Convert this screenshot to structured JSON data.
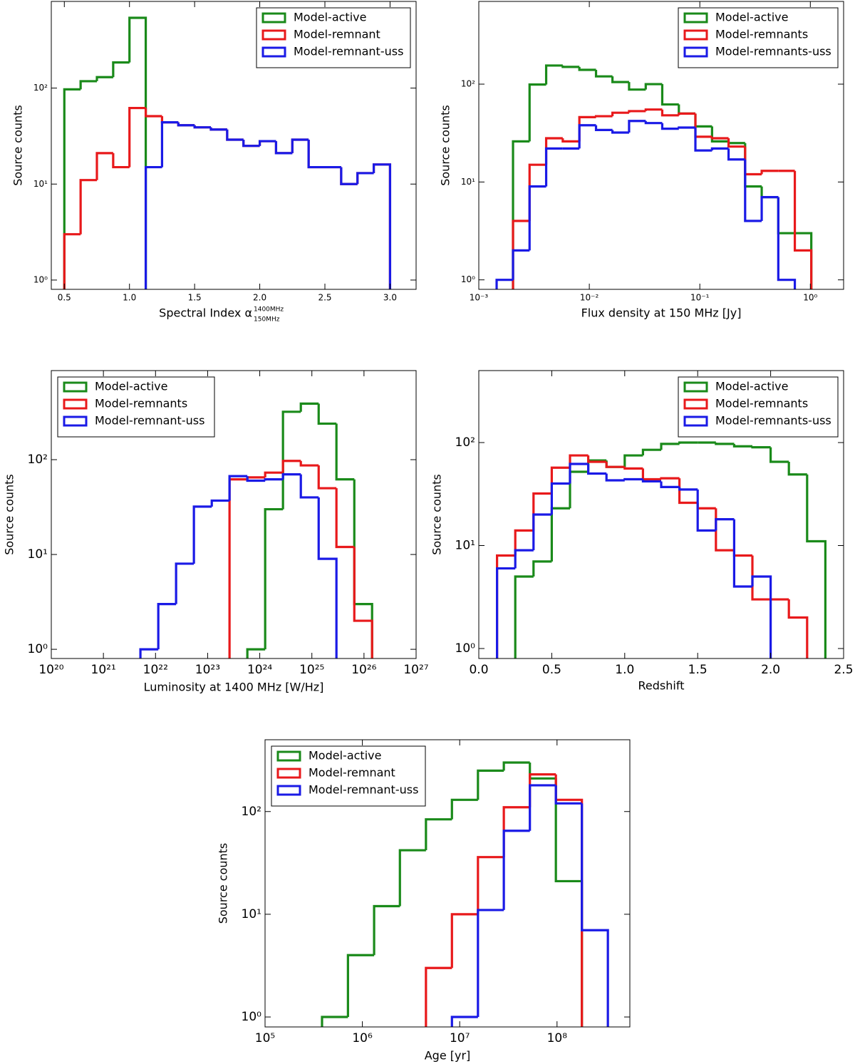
{
  "chart_data": [
    {
      "type": "histogram",
      "xlabel": "Spectral Index α",
      "xlabel_sup": "1400MHz",
      "xlabel_sub": "150MHz",
      "ylabel": "Source counts",
      "xscale": "linear",
      "yscale": "log",
      "xlim": [
        0.4,
        3.2
      ],
      "ylim": [
        0.8,
        800
      ],
      "xticks": [
        0.5,
        {
          "value": 1,
          "label": "1.0"
        },
        1.5,
        {
          "value": 2,
          "label": "2.0"
        },
        2.5,
        {
          "value": 3,
          "label": "3.0"
        }
      ],
      "yticks": [
        {
          "value": 1,
          "label": "10⁰"
        },
        {
          "value": 10,
          "label": "10¹"
        },
        {
          "value": 100,
          "label": "10²"
        }
      ],
      "legend": "upper right",
      "bins": [
        0.5,
        0.625,
        0.75,
        0.875,
        1.0,
        1.125,
        1.25,
        1.375,
        1.5,
        1.625,
        1.75,
        1.875,
        2.0,
        2.125,
        2.25,
        2.375,
        2.5,
        2.625,
        2.75,
        2.875,
        3.0
      ],
      "series": [
        {
          "name": "Model-active",
          "color": "#1a8a1a",
          "values": [
            97,
            118,
            130,
            185,
            540,
            null,
            null,
            null,
            null,
            null,
            null,
            null,
            null,
            null,
            null,
            null,
            null,
            null,
            null,
            null
          ]
        },
        {
          "name": "Model-remnant",
          "color": "#e8191b",
          "values": [
            3,
            11,
            21,
            15,
            62,
            51,
            44,
            41,
            39,
            37,
            29,
            25,
            28,
            21,
            29,
            15,
            15,
            10,
            13,
            16
          ]
        },
        {
          "name": "Model-remnant-uss",
          "color": "#1a1ae6",
          "values": [
            null,
            null,
            null,
            null,
            null,
            15,
            44,
            41,
            39,
            37,
            29,
            25,
            28,
            21,
            29,
            15,
            15,
            10,
            13,
            16
          ]
        }
      ]
    },
    {
      "type": "histogram",
      "xlabel": "Flux density at 150 MHz [Jy]",
      "ylabel": "Source counts",
      "xscale": "log",
      "yscale": "log",
      "xlim": [
        0.001,
        2
      ],
      "ylim": [
        0.8,
        700
      ],
      "xticks": [
        {
          "value": 0.001,
          "label": "10⁻³"
        },
        {
          "value": 0.01,
          "label": "10⁻²"
        },
        {
          "value": 0.1,
          "label": "10⁻¹"
        },
        {
          "value": 1,
          "label": "10⁰"
        }
      ],
      "yticks": [
        {
          "value": 1,
          "label": "10⁰"
        },
        {
          "value": 10,
          "label": "10¹"
        },
        {
          "value": 100,
          "label": "10²"
        }
      ],
      "legend": "upper right",
      "bins": [
        0.00145,
        0.00204,
        0.00288,
        0.00407,
        0.00575,
        0.00813,
        0.0115,
        0.0162,
        0.0229,
        0.0324,
        0.0457,
        0.0646,
        0.0912,
        0.129,
        0.182,
        0.257,
        0.363,
        0.513,
        0.724,
        1.02
      ],
      "series": [
        {
          "name": "Model-active",
          "color": "#1a8a1a",
          "values": [
            null,
            26,
            99,
            155,
            150,
            140,
            120,
            105,
            88,
            100,
            62,
            50,
            37,
            26,
            25,
            9,
            7,
            3,
            3
          ]
        },
        {
          "name": "Model-remnants",
          "color": "#e8191b",
          "values": [
            null,
            4,
            15,
            28,
            26,
            46,
            47,
            51,
            53,
            55,
            48,
            50,
            29,
            28,
            23,
            12,
            13,
            13,
            2
          ]
        },
        {
          "name": "Model-remnants-uss",
          "color": "#1a1ae6",
          "values": [
            1,
            2,
            9,
            22,
            22,
            38,
            34,
            32,
            42,
            40,
            35,
            36,
            21,
            22,
            17,
            4,
            7,
            1,
            null
          ]
        }
      ]
    },
    {
      "type": "histogram",
      "xlabel": "Luminosity at 1400 MHz [W/Hz]",
      "ylabel": "Source counts",
      "xscale": "log",
      "yscale": "log",
      "xlim": [
        1e+20,
        1e+27
      ],
      "ylim": [
        0.8,
        870
      ],
      "xticks": [
        {
          "value": 1e+20,
          "label": "10²⁰"
        },
        {
          "value": 1e+21,
          "label": "10²¹"
        },
        {
          "value": 1e+22,
          "label": "10²²"
        },
        {
          "value": 1e+23,
          "label": "10²³"
        },
        {
          "value": 1e+24,
          "label": "10²⁴"
        },
        {
          "value": 1e+25,
          "label": "10²⁵"
        },
        {
          "value": 1e+26,
          "label": "10²⁶"
        },
        {
          "value": 1e+27,
          "label": "10²⁷"
        }
      ],
      "yticks": [
        {
          "value": 1,
          "label": "10⁰"
        },
        {
          "value": 10,
          "label": "10¹"
        },
        {
          "value": 100,
          "label": "10²"
        }
      ],
      "legend": "upper left",
      "bins": [
        5.13e+21,
        1.13e+22,
        2.48e+22,
        5.45e+22,
        1.2e+23,
        2.63e+23,
        5.78e+23,
        1.27e+24,
        2.79e+24,
        6.14e+24,
        1.35e+25,
        2.96e+25,
        6.52e+25,
        1.43e+26
      ],
      "series": [
        {
          "name": "Model-active",
          "color": "#1a8a1a",
          "values": [
            null,
            null,
            null,
            null,
            null,
            null,
            1,
            30,
            320,
            390,
            240,
            62,
            3
          ]
        },
        {
          "name": "Model-remnants",
          "color": "#e8191b",
          "values": [
            null,
            null,
            null,
            null,
            null,
            62,
            65,
            73,
            97,
            87,
            50,
            12,
            2
          ]
        },
        {
          "name": "Model-remnant-uss",
          "color": "#1a1ae6",
          "values": [
            1,
            3,
            8,
            32,
            37,
            67,
            60,
            62,
            70,
            40,
            9,
            null,
            null
          ]
        }
      ]
    },
    {
      "type": "histogram",
      "xlabel": "Redshift",
      "ylabel": "Source counts",
      "xscale": "linear",
      "yscale": "log",
      "xlim": [
        0,
        2.5
      ],
      "ylim": [
        0.8,
        500
      ],
      "xticks": [
        {
          "value": 0,
          "label": "0.0"
        },
        0.5,
        {
          "value": 1,
          "label": "1.0"
        },
        1.5,
        {
          "value": 2,
          "label": "2.0"
        },
        2.5
      ],
      "yticks": [
        {
          "value": 1,
          "label": "10⁰"
        },
        {
          "value": 10,
          "label": "10¹"
        },
        {
          "value": 100,
          "label": "10²"
        }
      ],
      "legend": "upper right",
      "bins": [
        0.125,
        0.25,
        0.375,
        0.5,
        0.625,
        0.75,
        0.875,
        1.0,
        1.125,
        1.25,
        1.375,
        1.5,
        1.625,
        1.75,
        1.875,
        2.0,
        2.125,
        2.25,
        2.375
      ],
      "series": [
        {
          "name": "Model-active",
          "color": "#1a8a1a",
          "values": [
            null,
            5,
            7,
            23,
            52,
            67,
            58,
            75,
            85,
            97,
            100,
            100,
            97,
            92,
            90,
            65,
            49,
            11
          ]
        },
        {
          "name": "Model-remnants",
          "color": "#e8191b",
          "values": [
            8,
            14,
            32,
            57,
            75,
            65,
            58,
            56,
            44,
            45,
            26,
            23,
            9,
            8,
            3,
            3,
            2,
            null
          ]
        },
        {
          "name": "Model-remnants-uss",
          "color": "#1a1ae6",
          "values": [
            6,
            9,
            20,
            40,
            62,
            50,
            43,
            44,
            42,
            37,
            35,
            14,
            18,
            4,
            5,
            null,
            null,
            null
          ]
        }
      ]
    },
    {
      "type": "histogram",
      "xlabel": "Age [yr]",
      "ylabel": "Source counts",
      "xscale": "log",
      "yscale": "log",
      "xlim": [
        100000.0,
        560000000.0
      ],
      "ylim": [
        0.8,
        500
      ],
      "xticks": [
        {
          "value": 100000.0,
          "label": "10⁵"
        },
        {
          "value": 1000000.0,
          "label": "10⁶"
        },
        {
          "value": 10000000.0,
          "label": "10⁷"
        },
        {
          "value": 100000000.0,
          "label": "10⁸"
        }
      ],
      "yticks": [
        {
          "value": 1,
          "label": "10⁰"
        },
        {
          "value": 10,
          "label": "10¹"
        },
        {
          "value": 100,
          "label": "10²"
        }
      ],
      "legend": "upper left",
      "bins": [
        385000.0,
        711000.0,
        1320000.0,
        2430000.0,
        4500000.0,
        8320000.0,
        15400000.0,
        28400000.0,
        52600000.0,
        97300000.0,
        180000000.0,
        333000000.0
      ],
      "series": [
        {
          "name": "Model-active",
          "color": "#1a8a1a",
          "values": [
            1,
            4,
            12,
            42,
            84,
            130,
            250,
            300,
            210,
            21,
            null
          ]
        },
        {
          "name": "Model-remnant",
          "color": "#e8191b",
          "values": [
            null,
            null,
            null,
            null,
            3,
            10,
            36,
            110,
            230,
            130,
            null
          ]
        },
        {
          "name": "Model-remnant-uss",
          "color": "#1a1ae6",
          "values": [
            null,
            null,
            null,
            null,
            null,
            1,
            11,
            65,
            180,
            120,
            7
          ]
        }
      ]
    }
  ]
}
